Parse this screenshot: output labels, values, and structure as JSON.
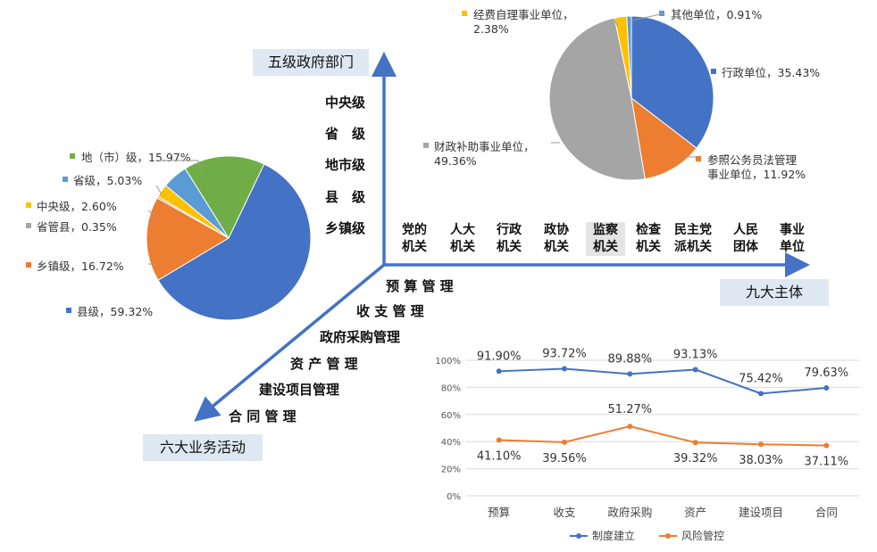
{
  "axes": {
    "vertical_label": "五级政府部门",
    "horizontal_label": "九大主体",
    "diagonal_label": "六大业务活动",
    "levels": [
      "中央级",
      "省　级",
      "地市级",
      "县　级",
      "乡镇级"
    ],
    "bodies": [
      {
        "text": "党的\n机关",
        "highlight": false
      },
      {
        "text": "人大\n机关",
        "highlight": false
      },
      {
        "text": "行政\n机关",
        "highlight": false
      },
      {
        "text": "政协\n机关",
        "highlight": false
      },
      {
        "text": "监察\n机关",
        "highlight": true
      },
      {
        "text": "检查\n机关",
        "highlight": false
      },
      {
        "text": "民主党\n派机关",
        "highlight": false
      },
      {
        "text": "人民\n团体",
        "highlight": false
      },
      {
        "text": "事业\n单位",
        "highlight": false
      }
    ],
    "activities": [
      "预 算 管 理",
      "收 支 管 理",
      "政府采购管理",
      "资 产 管 理",
      "建设项目管理",
      "合 同 管 理"
    ]
  },
  "colors": {
    "blue": "#4472c4",
    "orange": "#ed7d31",
    "gray": "#a5a5a5",
    "yellow": "#ffc000",
    "lightblue": "#5b9bd5",
    "green": "#70ad47",
    "box": "#dde8f3"
  },
  "chart_data": [
    {
      "type": "pie",
      "slices": [
        {
          "name": "县级",
          "value": 59.32,
          "label": "县级，59.32%",
          "color": "#4472c4"
        },
        {
          "name": "乡镇级",
          "value": 16.72,
          "label": "乡镇级，16.72%",
          "color": "#ed7d31"
        },
        {
          "name": "省管县",
          "value": 0.35,
          "label": "省管县，0.35%",
          "color": "#a5a5a5"
        },
        {
          "name": "中央级",
          "value": 2.6,
          "label": "中央级，2.60%",
          "color": "#ffc000"
        },
        {
          "name": "省级",
          "value": 5.03,
          "label": "省级，5.03%",
          "color": "#5b9bd5"
        },
        {
          "name": "地（市）级",
          "value": 15.97,
          "label": "地（市）级，15.97%",
          "color": "#70ad47"
        }
      ]
    },
    {
      "type": "pie",
      "slices": [
        {
          "name": "行政单位",
          "value": 35.43,
          "label": "行政单位，35.43%",
          "color": "#4472c4"
        },
        {
          "name": "参照公务员法管理事业单位",
          "value": 11.92,
          "label": "参照公务员法管理\n事业单位，11.92%",
          "color": "#ed7d31"
        },
        {
          "name": "财政补助事业单位",
          "value": 49.36,
          "label": "财政补助事业单位，\n49.36%",
          "color": "#a5a5a5"
        },
        {
          "name": "经费自理事业单位",
          "value": 2.38,
          "label": "经费自理事业单位，\n2.38%",
          "color": "#ffc000"
        },
        {
          "name": "其他单位",
          "value": 0.91,
          "label": "其他单位，0.91%",
          "color": "#5b9bd5"
        }
      ]
    },
    {
      "type": "line",
      "categories": [
        "预算",
        "收支",
        "政府采购",
        "资产",
        "建设项目",
        "合同"
      ],
      "y_ticks": [
        "0%",
        "20%",
        "40%",
        "60%",
        "80%",
        "100%"
      ],
      "ylim": [
        0,
        100
      ],
      "series": [
        {
          "name": "制度建立",
          "values": [
            91.9,
            93.72,
            89.88,
            93.13,
            75.42,
            79.63
          ],
          "labels": [
            "91.90%",
            "93.72%",
            "89.88%",
            "93.13%",
            "75.42%",
            "79.63%"
          ],
          "color": "#4472c4"
        },
        {
          "name": "风险管控",
          "values": [
            41.1,
            39.56,
            51.27,
            39.32,
            38.03,
            37.11
          ],
          "labels": [
            "41.10%",
            "39.56%",
            "51.27%",
            "39.32%",
            "38.03%",
            "37.11%"
          ],
          "color": "#ed7d31"
        }
      ]
    }
  ]
}
